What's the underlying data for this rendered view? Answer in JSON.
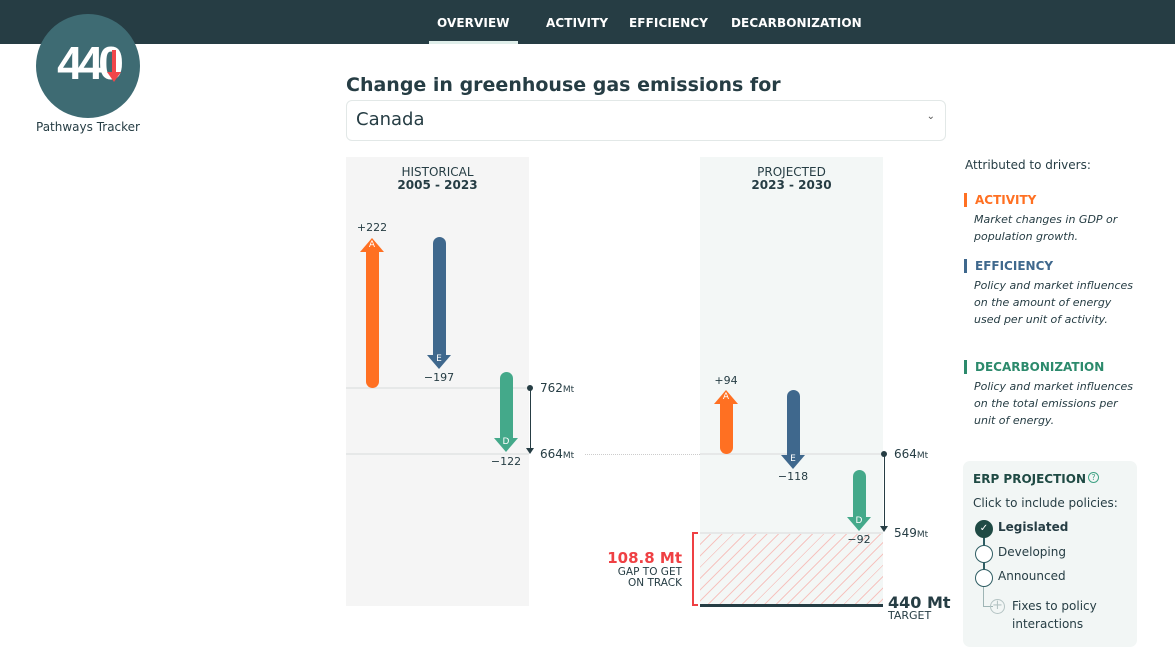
{
  "nav": {
    "tabs": [
      {
        "label": "OVERVIEW",
        "active": true
      },
      {
        "label": "ACTIVITY"
      },
      {
        "label": "EFFICIENCY"
      },
      {
        "label": "DECARBONIZATION"
      }
    ]
  },
  "logo": {
    "text": "440",
    "caption": "Pathways Tracker"
  },
  "header": {
    "title": "Change in greenhouse gas emissions for",
    "region": "Canada"
  },
  "colors": {
    "activity": "#ff7022",
    "efficiency": "#3f688d",
    "decarbonization": "#44a98a",
    "gap": "#ef4044",
    "nav": "#263d44"
  },
  "historical": {
    "label": "HISTORICAL",
    "period": "2005 - 2023",
    "activity": "+222",
    "efficiency": "−197",
    "decarbonization": "−122",
    "start": "762",
    "end": "664",
    "unit": "Mt"
  },
  "projected": {
    "label": "PROJECTED",
    "period": "2023 - 2030",
    "activity": "+94",
    "efficiency": "−118",
    "decarbonization": "−92",
    "start": "664",
    "end": "549",
    "unit": "Mt"
  },
  "letters": {
    "a": "A",
    "e": "E",
    "d": "D"
  },
  "gap": {
    "value": "108.8 Mt",
    "label": "GAP TO GET ON TRACK"
  },
  "target": {
    "value": "440 Mt",
    "label": "TARGET"
  },
  "drivers": {
    "heading": "Attributed to drivers:",
    "items": [
      {
        "title": "ACTIVITY",
        "desc": "Market changes in GDP or population growth."
      },
      {
        "title": "EFFICIENCY",
        "desc": "Policy and market influences on the amount of energy used per unit of activity."
      },
      {
        "title": "DECARBONIZATION",
        "desc": "Policy and market influences on the total emissions per unit of energy."
      }
    ]
  },
  "erp": {
    "title": "ERP PROJECTION",
    "help_icon": "question-circle-icon",
    "subtitle": "Click to include policies:",
    "policies": [
      {
        "label": "Legislated",
        "checked": true
      },
      {
        "label": "Developing",
        "checked": false
      },
      {
        "label": "Announced",
        "checked": false
      }
    ],
    "fixes": "Fixes to policy interactions"
  }
}
